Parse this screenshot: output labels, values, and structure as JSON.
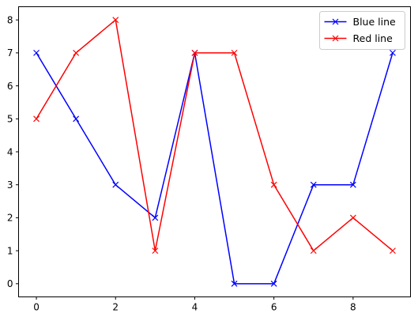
{
  "chart_data": {
    "type": "line",
    "x": [
      0,
      1,
      2,
      3,
      4,
      5,
      6,
      7,
      8,
      9
    ],
    "series": [
      {
        "name": "Blue line",
        "color": "#0000ff",
        "marker": "x",
        "values": [
          7,
          5,
          3,
          2,
          7,
          0,
          0,
          3,
          3,
          7
        ]
      },
      {
        "name": "Red line",
        "color": "#ff0000",
        "marker": "x",
        "values": [
          5,
          7,
          8,
          1,
          7,
          7,
          3,
          1,
          2,
          1
        ]
      }
    ],
    "xticks": [
      "0",
      "2",
      "4",
      "6",
      "8"
    ],
    "yticks": [
      "0",
      "1",
      "2",
      "3",
      "4",
      "5",
      "6",
      "7",
      "8"
    ],
    "xlim": [
      -0.45,
      9.45
    ],
    "ylim": [
      -0.4,
      8.4
    ],
    "grid": false,
    "legend_position": "top-right"
  }
}
